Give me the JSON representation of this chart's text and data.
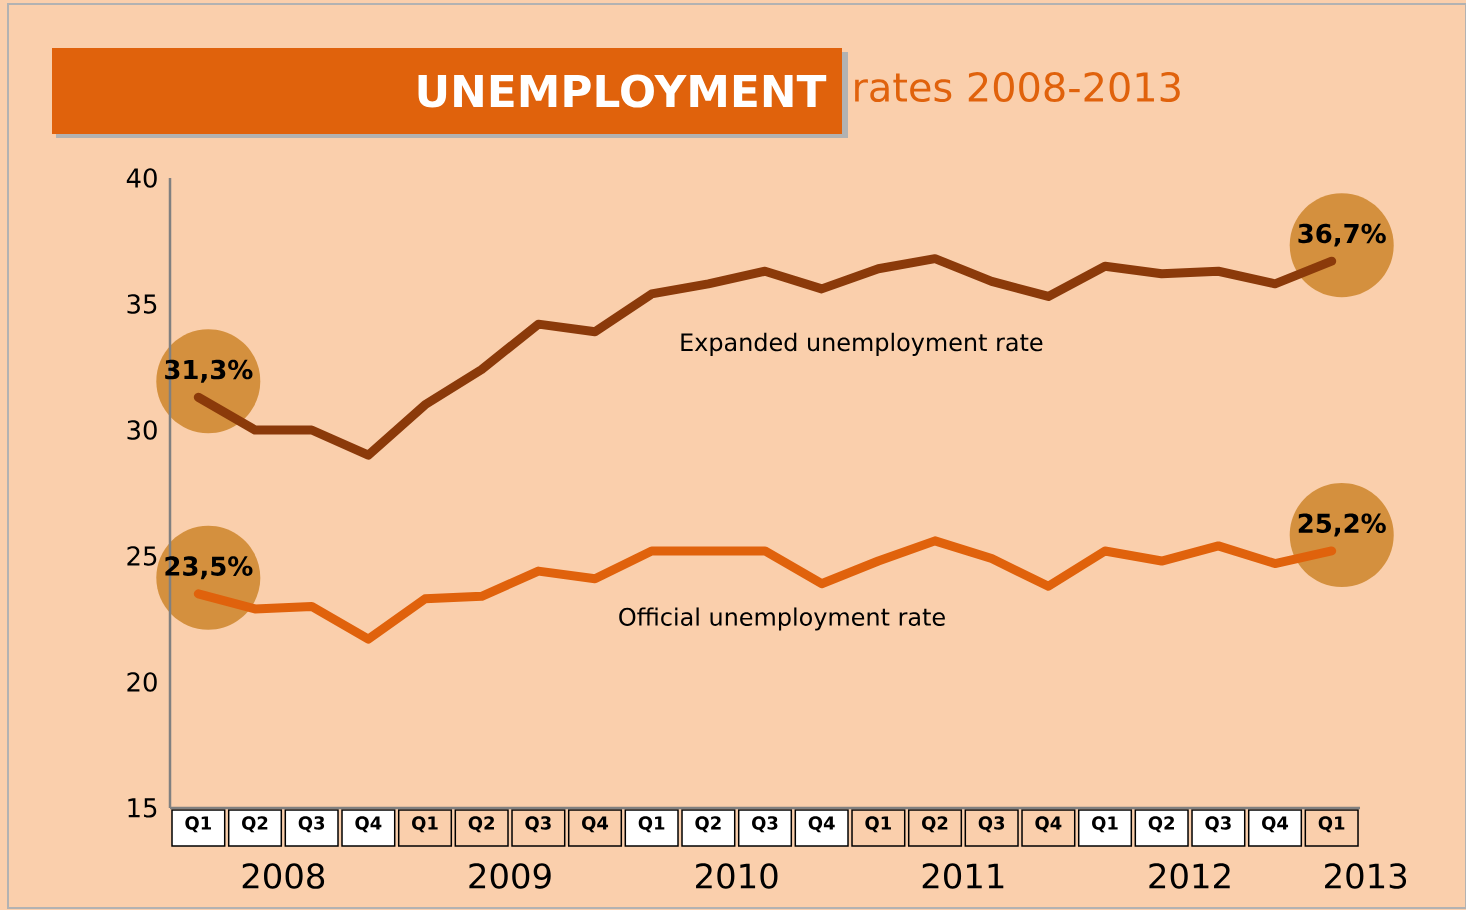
{
  "chart_data": {
    "type": "line",
    "title": "UNEMPLOYMENT",
    "subtitle": "rates 2008-2013",
    "categories": [
      "Q1",
      "Q2",
      "Q3",
      "Q4",
      "Q1",
      "Q2",
      "Q3",
      "Q4",
      "Q1",
      "Q2",
      "Q3",
      "Q4",
      "Q1",
      "Q2",
      "Q3",
      "Q4",
      "Q1",
      "Q2",
      "Q3",
      "Q4",
      "Q1"
    ],
    "annotations": [
      "2008",
      "2009",
      "2010",
      "2011",
      "2012",
      "2013"
    ],
    "series": [
      {
        "name": "Expanded unemployment rate",
        "color": "#8b3a0a",
        "values": [
          31.3,
          30.0,
          30.0,
          29.0,
          31.0,
          32.4,
          34.2,
          33.9,
          35.4,
          35.8,
          36.3,
          35.6,
          36.4,
          36.8,
          35.9,
          35.3,
          36.5,
          36.2,
          36.3,
          35.8,
          36.7
        ],
        "value_labels": [
          "31,3%",
          null,
          null,
          null,
          null,
          null,
          null,
          null,
          null,
          null,
          null,
          null,
          null,
          null,
          null,
          null,
          null,
          null,
          null,
          null,
          "36,7%"
        ]
      },
      {
        "name": "Official unemployment rate",
        "color": "#e0620c",
        "values": [
          23.5,
          22.9,
          23.0,
          21.7,
          23.3,
          23.4,
          24.4,
          24.1,
          25.2,
          25.2,
          25.2,
          23.9,
          24.8,
          25.6,
          24.9,
          23.8,
          25.2,
          24.8,
          25.4,
          24.7,
          25.2
        ],
        "value_labels": [
          "23,5%",
          null,
          null,
          null,
          null,
          null,
          null,
          null,
          null,
          null,
          null,
          null,
          null,
          null,
          null,
          null,
          null,
          null,
          null,
          null,
          "25,2%"
        ]
      }
    ],
    "ylim": [
      15,
      40
    ],
    "yticks": [
      15,
      20,
      25,
      30,
      35,
      40
    ]
  }
}
